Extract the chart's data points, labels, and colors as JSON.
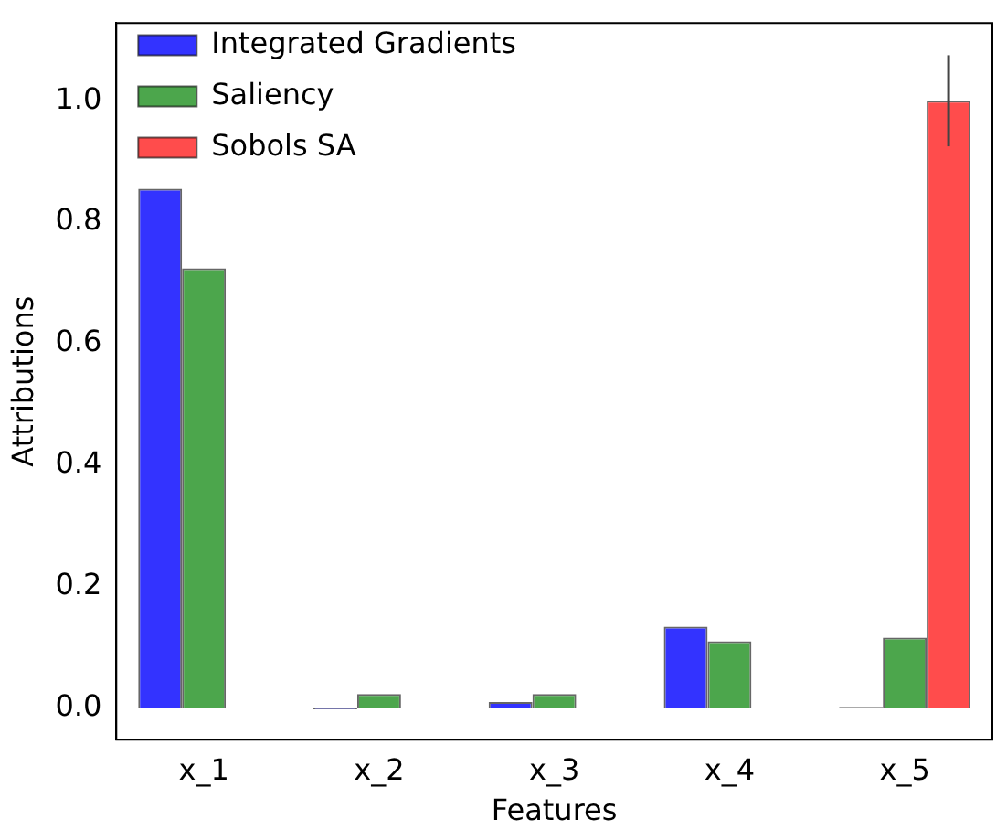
{
  "chart_data": {
    "type": "bar",
    "xlabel": "Features",
    "ylabel": "Attributions",
    "categories": [
      "x_1",
      "x_2",
      "x_3",
      "x_4",
      "x_5"
    ],
    "series": [
      {
        "name": "Integrated Gradients",
        "color": "#3333ff",
        "values": [
          0.855,
          -0.002,
          0.01,
          0.134,
          0.002
        ]
      },
      {
        "name": "Saliency",
        "color": "#4ca64c",
        "values": [
          0.724,
          0.023,
          0.023,
          0.11,
          0.116
        ]
      },
      {
        "name": "Sobols SA",
        "color": "#ff4c4c",
        "values": [
          0,
          0,
          0,
          0,
          1.0
        ],
        "errors": [
          null,
          null,
          null,
          null,
          0.075
        ]
      }
    ],
    "ylim": [
      -0.052,
      1.128
    ],
    "yticks": [
      {
        "value": 0,
        "label": "0.0"
      },
      0.2,
      0.4,
      0.6,
      0.8,
      {
        "value": 1,
        "label": "1.0"
      }
    ],
    "grid": false,
    "legend": "top left"
  }
}
